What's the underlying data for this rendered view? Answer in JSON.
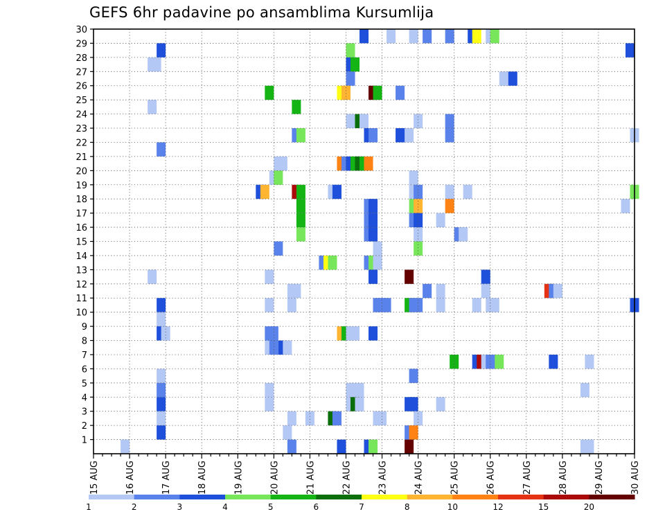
{
  "chart_data": {
    "type": "heatmap",
    "title": "GEFS 6hr padavine po ansamblima Kursumlija",
    "xlabel": "",
    "ylabel": "",
    "x_tick_labels": [
      "15 AUG",
      "16 AUG",
      "17 AUG",
      "18 AUG",
      "19 AUG",
      "20 AUG",
      "21 AUG",
      "22 AUG",
      "23 AUG",
      "24 AUG",
      "25 AUG",
      "26 AUG",
      "27 AUG",
      "28 AUG",
      "29 AUG",
      "30 AUG"
    ],
    "y_tick_labels": [
      "1",
      "2",
      "3",
      "4",
      "5",
      "6",
      "7",
      "8",
      "9",
      "10",
      "11",
      "12",
      "13",
      "14",
      "15",
      "16",
      "17",
      "18",
      "19",
      "20",
      "21",
      "22",
      "23",
      "24",
      "25",
      "26",
      "27",
      "28",
      "29",
      "30"
    ],
    "x_step_hours": 6,
    "ylim": [
      0,
      30
    ],
    "grid": true,
    "legend_position": "bottom",
    "colorbar": {
      "thresholds": [
        "1",
        "2",
        "3",
        "4",
        "5",
        "6",
        "7",
        "8",
        "10",
        "12",
        "15",
        "20"
      ],
      "colors": [
        "#b4c8f5",
        "#5a82eb",
        "#1e50dc",
        "#78e65a",
        "#14b414",
        "#0a6e0a",
        "#ffff14",
        "#ffb432",
        "#ff8214",
        "#e63214",
        "#aa0a0a",
        "#640000"
      ]
    },
    "cells_format": "[ensemble_member, step_index_6h_from_15AUG_00, color_index]",
    "cells": [
      [
        30,
        60,
        3
      ],
      [
        30,
        66,
        1
      ],
      [
        30,
        71,
        1
      ],
      [
        30,
        74,
        2
      ],
      [
        30,
        79,
        2
      ],
      [
        30,
        84,
        3
      ],
      [
        30,
        85,
        7
      ],
      [
        30,
        88,
        1
      ],
      [
        30,
        89,
        4
      ],
      [
        29,
        15,
        3
      ],
      [
        29,
        57,
        4
      ],
      [
        29,
        119,
        3
      ],
      [
        28,
        13,
        1
      ],
      [
        28,
        14,
        1
      ],
      [
        28,
        57,
        3
      ],
      [
        28,
        58,
        5
      ],
      [
        27,
        57,
        2
      ],
      [
        27,
        91,
        1
      ],
      [
        27,
        93,
        3
      ],
      [
        26,
        39,
        5
      ],
      [
        26,
        55,
        7
      ],
      [
        26,
        56,
        8
      ],
      [
        26,
        62,
        12
      ],
      [
        26,
        63,
        5
      ],
      [
        26,
        68,
        2
      ],
      [
        25,
        13,
        1
      ],
      [
        25,
        45,
        5
      ],
      [
        24,
        57,
        1
      ],
      [
        24,
        59,
        6
      ],
      [
        24,
        60,
        1
      ],
      [
        24,
        72,
        1
      ],
      [
        24,
        79,
        2
      ],
      [
        23,
        45,
        2
      ],
      [
        23,
        46,
        4
      ],
      [
        23,
        61,
        3
      ],
      [
        23,
        62,
        2
      ],
      [
        23,
        68,
        3
      ],
      [
        23,
        69,
        3
      ],
      [
        23,
        70,
        1
      ],
      [
        23,
        79,
        2
      ],
      [
        23,
        120,
        1
      ],
      [
        22,
        15,
        2
      ],
      [
        21,
        41,
        1
      ],
      [
        21,
        42,
        1
      ],
      [
        21,
        55,
        9
      ],
      [
        21,
        56,
        2
      ],
      [
        21,
        57,
        3
      ],
      [
        21,
        58,
        5
      ],
      [
        21,
        59,
        6
      ],
      [
        21,
        60,
        5
      ],
      [
        21,
        61,
        9
      ],
      [
        20,
        40,
        1
      ],
      [
        20,
        41,
        4
      ],
      [
        20,
        71,
        1
      ],
      [
        19,
        37,
        3
      ],
      [
        19,
        38,
        8
      ],
      [
        19,
        45,
        11
      ],
      [
        19,
        46,
        5
      ],
      [
        19,
        53,
        1
      ],
      [
        19,
        54,
        3
      ],
      [
        19,
        71,
        1
      ],
      [
        19,
        72,
        2
      ],
      [
        19,
        79,
        1
      ],
      [
        19,
        83,
        1
      ],
      [
        19,
        120,
        4
      ],
      [
        18,
        46,
        5
      ],
      [
        18,
        61,
        2
      ],
      [
        18,
        62,
        3
      ],
      [
        18,
        71,
        4
      ],
      [
        18,
        72,
        8
      ],
      [
        18,
        79,
        9
      ],
      [
        18,
        118,
        1
      ],
      [
        17,
        46,
        5
      ],
      [
        17,
        61,
        2
      ],
      [
        17,
        62,
        3
      ],
      [
        17,
        71,
        2
      ],
      [
        17,
        72,
        3
      ],
      [
        17,
        77,
        1
      ],
      [
        16,
        46,
        4
      ],
      [
        16,
        61,
        2
      ],
      [
        16,
        62,
        3
      ],
      [
        16,
        72,
        1
      ],
      [
        16,
        81,
        2
      ],
      [
        16,
        82,
        1
      ],
      [
        15,
        41,
        2
      ],
      [
        15,
        63,
        1
      ],
      [
        15,
        72,
        4
      ],
      [
        14,
        51,
        2
      ],
      [
        14,
        52,
        7
      ],
      [
        14,
        53,
        4
      ],
      [
        14,
        61,
        2
      ],
      [
        14,
        62,
        4
      ],
      [
        14,
        63,
        1
      ],
      [
        13,
        13,
        1
      ],
      [
        13,
        39,
        1
      ],
      [
        13,
        62,
        3
      ],
      [
        13,
        70,
        12
      ],
      [
        13,
        87,
        3
      ],
      [
        12,
        44,
        1
      ],
      [
        12,
        45,
        1
      ],
      [
        12,
        74,
        2
      ],
      [
        12,
        77,
        1
      ],
      [
        12,
        87,
        1
      ],
      [
        12,
        101,
        10
      ],
      [
        12,
        102,
        2
      ],
      [
        12,
        103,
        1
      ],
      [
        11,
        15,
        3
      ],
      [
        11,
        39,
        1
      ],
      [
        11,
        44,
        1
      ],
      [
        11,
        63,
        2
      ],
      [
        11,
        64,
        2
      ],
      [
        11,
        65,
        2
      ],
      [
        11,
        70,
        5
      ],
      [
        11,
        71,
        2
      ],
      [
        11,
        72,
        2
      ],
      [
        11,
        77,
        1
      ],
      [
        11,
        85,
        1
      ],
      [
        11,
        88,
        1
      ],
      [
        11,
        89,
        1
      ],
      [
        11,
        120,
        3
      ],
      [
        10,
        15,
        1
      ],
      [
        9,
        15,
        3
      ],
      [
        9,
        16,
        1
      ],
      [
        9,
        39,
        2
      ],
      [
        9,
        40,
        2
      ],
      [
        9,
        55,
        8
      ],
      [
        9,
        56,
        5
      ],
      [
        9,
        57,
        1
      ],
      [
        9,
        58,
        1
      ],
      [
        9,
        62,
        3
      ],
      [
        8,
        39,
        1
      ],
      [
        8,
        40,
        2
      ],
      [
        8,
        42,
        3
      ],
      [
        8,
        43,
        1
      ],
      [
        7,
        80,
        5
      ],
      [
        7,
        85,
        3
      ],
      [
        7,
        86,
        11
      ],
      [
        7,
        87,
        1
      ],
      [
        7,
        88,
        2
      ],
      [
        7,
        89,
        2
      ],
      [
        7,
        90,
        4
      ],
      [
        7,
        102,
        3
      ],
      [
        7,
        110,
        1
      ],
      [
        6,
        15,
        1
      ],
      [
        6,
        71,
        2
      ],
      [
        5,
        15,
        2
      ],
      [
        5,
        39,
        1
      ],
      [
        5,
        57,
        1
      ],
      [
        5,
        58,
        1
      ],
      [
        5,
        59,
        1
      ],
      [
        5,
        109,
        1
      ],
      [
        4,
        15,
        3
      ],
      [
        4,
        39,
        1
      ],
      [
        4,
        57,
        1
      ],
      [
        4,
        58,
        6
      ],
      [
        4,
        59,
        1
      ],
      [
        4,
        70,
        3
      ],
      [
        4,
        71,
        3
      ],
      [
        4,
        77,
        1
      ],
      [
        3,
        15,
        1
      ],
      [
        3,
        44,
        1
      ],
      [
        3,
        48,
        1
      ],
      [
        3,
        53,
        6
      ],
      [
        3,
        54,
        2
      ],
      [
        3,
        63,
        1
      ],
      [
        3,
        64,
        1
      ],
      [
        3,
        72,
        1
      ],
      [
        2,
        15,
        3
      ],
      [
        2,
        43,
        1
      ],
      [
        2,
        70,
        2
      ],
      [
        2,
        71,
        9
      ],
      [
        1,
        7,
        1
      ],
      [
        1,
        44,
        2
      ],
      [
        1,
        55,
        3
      ],
      [
        1,
        61,
        3
      ],
      [
        1,
        62,
        4
      ],
      [
        1,
        70,
        12
      ],
      [
        1,
        109,
        1
      ],
      [
        1,
        110,
        1
      ]
    ]
  }
}
